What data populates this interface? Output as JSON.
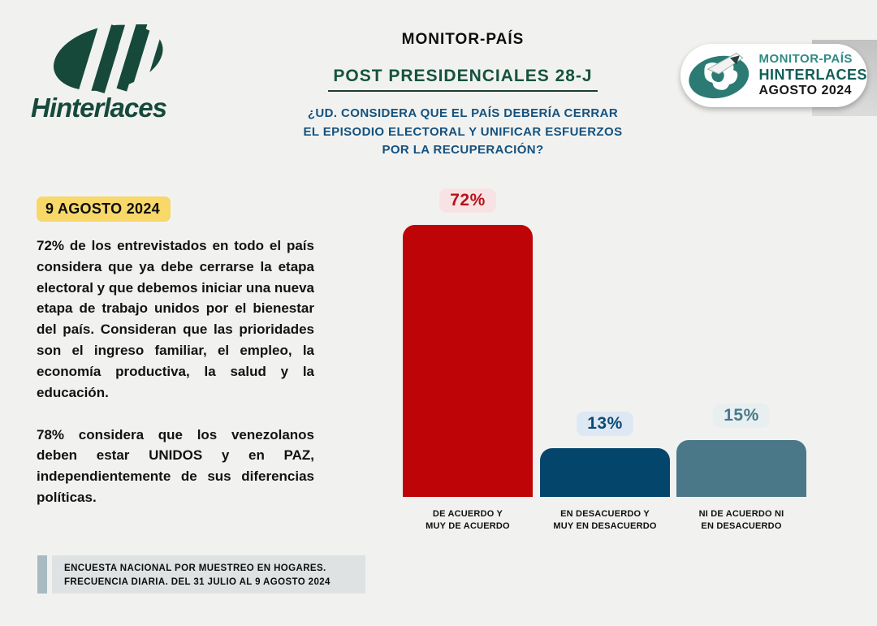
{
  "brand": {
    "wordmark": "Hinterlaces",
    "logo_color": "#17493B"
  },
  "header": {
    "title": "MONITOR-PAÍS",
    "subtitle": "POST PRESIDENCIALES 28-J",
    "question": "¿UD. CONSIDERA QUE EL PAÍS DEBERÍA CERRAR\nEL EPISODIO ELECTORAL Y UNIFICAR ESFUERZOS\nPOR LA RECUPERACIÓN?"
  },
  "badge": {
    "line1": "MONITOR-PAÍS",
    "line2": "HINTERLACES",
    "line3": "AGOSTO 2024"
  },
  "left_column": {
    "date_badge": "9 AGOSTO 2024",
    "paragraph1": "72% de los entrevistados en todo el país considera que ya debe cerrarse la etapa electoral y que debemos iniciar una nueva etapa de trabajo unidos por el bienestar del país. Consideran que las prioridades son el ingreso familiar, el empleo, la economía productiva, la salud y la educación.",
    "paragraph2": "78% considera que los venezolanos deben estar UNIDOS y en PAZ, independientemente de sus diferencias políticas."
  },
  "footer": {
    "line1": "ENCUESTA NACIONAL POR MUESTREO EN HOGARES.",
    "line2": "FRECUENCIA DIARIA. DEL 31 JULIO AL 9 AGOSTO 2024"
  },
  "colors": {
    "background": "#F1F2F0",
    "agree_red": "#BE0407",
    "disagree_navy": "#04466B",
    "neutral_teal": "#4A7889",
    "date_yellow": "#F7D869",
    "brand_green": "#17493B",
    "subtitle_green": "#15523F",
    "question_blue": "#14517E"
  },
  "chart_data": {
    "type": "bar",
    "title": "¿UD. CONSIDERA QUE EL PAÍS DEBERÍA CERRAR EL EPISODIO ELECTORAL Y UNIFICAR ESFUERZOS POR LA RECUPERACIÓN?",
    "categories": [
      "DE ACUERDO Y\nMUY DE ACUERDO",
      "EN DESACUERDO Y\nMUY EN DESACUERDO",
      "NI DE ACUERDO NI\nEN DESACUERDO"
    ],
    "values": [
      72,
      13,
      15
    ],
    "value_labels": [
      "72%",
      "13%",
      "15%"
    ],
    "unit": "%",
    "ylim": [
      0,
      100
    ],
    "grid": false,
    "legend": false,
    "bar_colors": [
      "#BE0407",
      "#04466B",
      "#4A7889"
    ],
    "label_text_colors": [
      "#B5121B",
      "#0A4A73",
      "#4A7889"
    ],
    "label_bg_colors": [
      "#F8E3E4",
      "#DEE8F4",
      "#E7EFF1"
    ]
  }
}
